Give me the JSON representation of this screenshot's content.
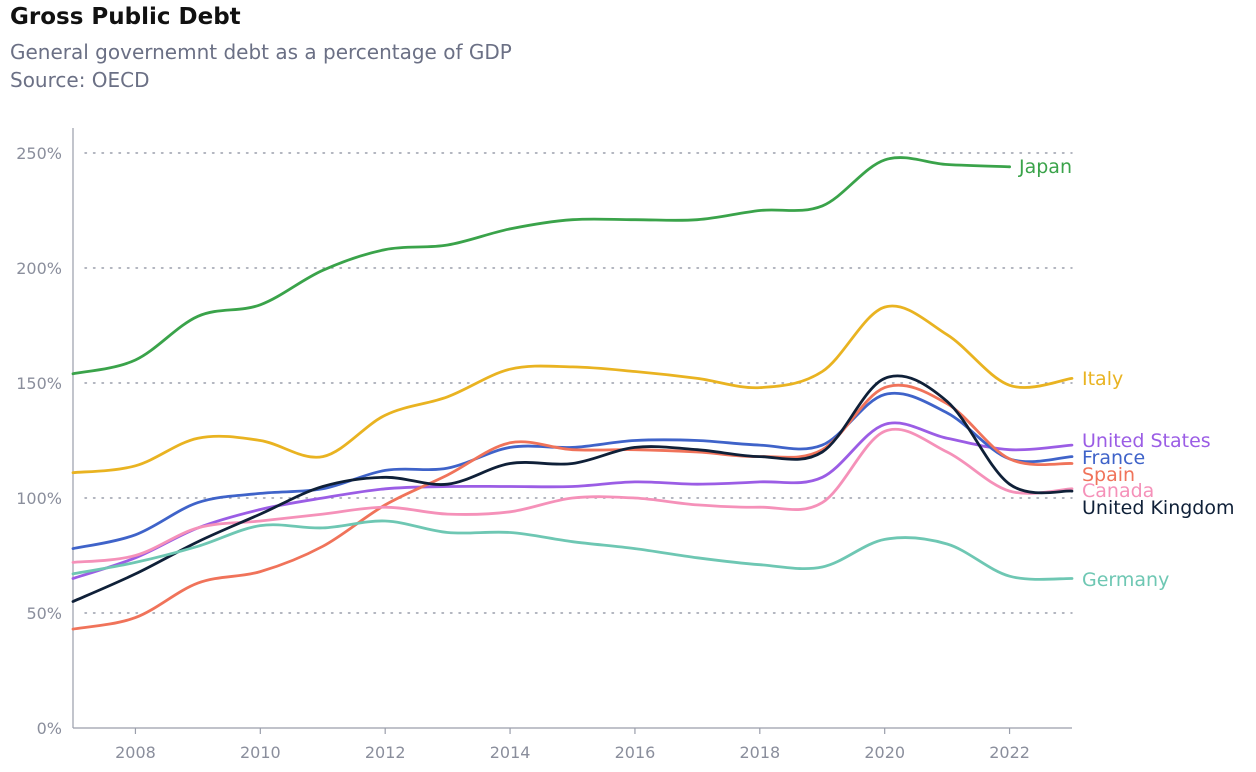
{
  "chart_data": {
    "type": "line",
    "title": "Gross Public Debt",
    "subtitle": [
      "General governemnt debt as a percentage of GDP",
      "Source: OECD"
    ],
    "xlabel": "",
    "ylabel": "",
    "xlim": [
      2007,
      2023
    ],
    "ylim": [
      0,
      260
    ],
    "x_ticks": [
      2008,
      2010,
      2012,
      2014,
      2016,
      2018,
      2020,
      2022
    ],
    "x_tick_labels": [
      "2008",
      "2010",
      "2012",
      "2014",
      "2016",
      "2018",
      "2020",
      "2022"
    ],
    "y_ticks": [
      0,
      50,
      100,
      150,
      200,
      250
    ],
    "y_tick_labels": [
      "0%",
      "50%",
      "100%",
      "150%",
      "200%",
      "250%"
    ],
    "grid": "horizontal dotted",
    "legend": "direct labels at line ends",
    "x": [
      2007,
      2008,
      2009,
      2010,
      2011,
      2012,
      2013,
      2014,
      2015,
      2016,
      2017,
      2018,
      2019,
      2020,
      2021,
      2022,
      2023
    ],
    "series": [
      {
        "name": "Japan",
        "color": "#3aa34a",
        "values": [
          154,
          160,
          179,
          184,
          199,
          208,
          210,
          217,
          221,
          221,
          221,
          225,
          227,
          247,
          245,
          244,
          null
        ]
      },
      {
        "name": "Italy",
        "color": "#e9b321",
        "values": [
          111,
          114,
          126,
          125,
          118,
          136,
          144,
          156,
          157,
          155,
          152,
          148,
          155,
          183,
          171,
          149,
          152
        ]
      },
      {
        "name": "United States",
        "color": "#9b5de5",
        "values": [
          65,
          74,
          87,
          95,
          100,
          104,
          105,
          105,
          105,
          107,
          106,
          107,
          109,
          132,
          126,
          121,
          123
        ]
      },
      {
        "name": "France",
        "color": "#3f63c9",
        "values": [
          78,
          84,
          98,
          102,
          104,
          112,
          113,
          122,
          122,
          125,
          125,
          123,
          123,
          145,
          137,
          117,
          118
        ]
      },
      {
        "name": "Spain",
        "color": "#f0735a",
        "values": [
          43,
          48,
          63,
          68,
          79,
          97,
          110,
          124,
          121,
          121,
          120,
          118,
          121,
          148,
          141,
          117,
          115
        ]
      },
      {
        "name": "Canada",
        "color": "#f591b9",
        "values": [
          72,
          75,
          87,
          90,
          93,
          96,
          93,
          94,
          100,
          100,
          97,
          96,
          98,
          129,
          120,
          103,
          104
        ]
      },
      {
        "name": "United Kingdom",
        "color": "#0f2038",
        "values": [
          55,
          67,
          81,
          93,
          105,
          109,
          106,
          115,
          115,
          122,
          121,
          118,
          120,
          152,
          142,
          106,
          103
        ]
      },
      {
        "name": "Germany",
        "color": "#6ec7b3",
        "values": [
          67,
          72,
          79,
          88,
          87,
          90,
          85,
          85,
          81,
          78,
          74,
          71,
          70,
          82,
          80,
          66,
          65
        ]
      }
    ]
  }
}
